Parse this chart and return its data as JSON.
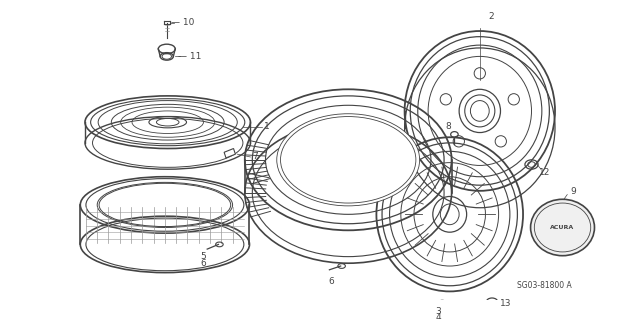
{
  "bg_color": "#ffffff",
  "fig_width": 6.4,
  "fig_height": 3.19,
  "dpi": 100,
  "dc": "#444444",
  "fc": "#333333",
  "footer_text": "SG03-81800 A",
  "annotation_fontsize": 6.5
}
